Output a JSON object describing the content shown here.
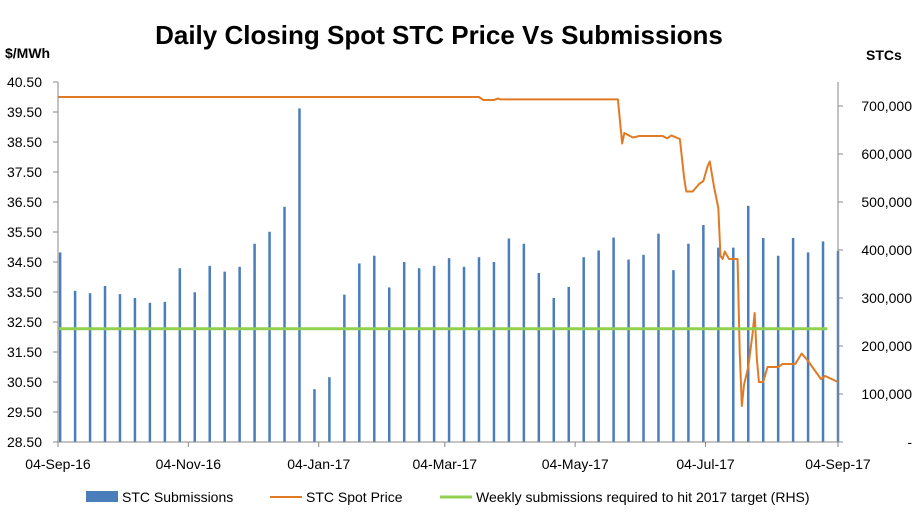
{
  "chart_data": {
    "type": "bar+line",
    "title": "Daily Closing Spot STC Price Vs Submissions",
    "y_left_label": "$/MWh",
    "y_right_label": "STCs",
    "x_range": [
      "2016-09-04",
      "2017-09-04"
    ],
    "x_ticks": [
      {
        "date": "2016-09-04",
        "label": "04-Sep-16"
      },
      {
        "date": "2016-11-04",
        "label": "04-Nov-16"
      },
      {
        "date": "2017-01-04",
        "label": "04-Jan-17"
      },
      {
        "date": "2017-03-04",
        "label": "04-Mar-17"
      },
      {
        "date": "2017-05-04",
        "label": "04-May-17"
      },
      {
        "date": "2017-07-04",
        "label": "04-Jul-17"
      },
      {
        "date": "2017-09-04",
        "label": "04-Sep-17"
      }
    ],
    "y_left": {
      "min": 28.5,
      "max": 40.5,
      "step": 1,
      "ticks": [
        "28.50",
        "29.50",
        "30.50",
        "31.50",
        "32.50",
        "33.50",
        "34.50",
        "35.50",
        "36.50",
        "37.50",
        "38.50",
        "39.50",
        "40.50"
      ]
    },
    "y_right": {
      "min": 0,
      "max": 750000,
      "step": 100000,
      "ticks": [
        "-",
        "100,000",
        "200,000",
        "300,000",
        "400,000",
        "500,000",
        "600,000",
        "700,000"
      ]
    },
    "series": [
      {
        "name": "STC Submissions",
        "kind": "bar",
        "axis": "right",
        "color": "#4A7EBB",
        "points": [
          [
            "2016-09-05",
            395000
          ],
          [
            "2016-09-12",
            315000
          ],
          [
            "2016-09-19",
            310000
          ],
          [
            "2016-09-26",
            325000
          ],
          [
            "2016-10-03",
            308000
          ],
          [
            "2016-10-10",
            300000
          ],
          [
            "2016-10-17",
            290000
          ],
          [
            "2016-10-24",
            292000
          ],
          [
            "2016-10-31",
            362000
          ],
          [
            "2016-11-07",
            312000
          ],
          [
            "2016-11-14",
            367000
          ],
          [
            "2016-11-21",
            355000
          ],
          [
            "2016-11-28",
            365000
          ],
          [
            "2016-12-05",
            413000
          ],
          [
            "2016-12-12",
            438000
          ],
          [
            "2016-12-19",
            490000
          ],
          [
            "2016-12-26",
            695000
          ],
          [
            "2017-01-02",
            110000
          ],
          [
            "2017-01-09",
            135000
          ],
          [
            "2017-01-16",
            307000
          ],
          [
            "2017-01-23",
            372000
          ],
          [
            "2017-01-30",
            388000
          ],
          [
            "2017-02-06",
            322000
          ],
          [
            "2017-02-13",
            375000
          ],
          [
            "2017-02-20",
            362000
          ],
          [
            "2017-02-27",
            367000
          ],
          [
            "2017-03-06",
            383000
          ],
          [
            "2017-03-13",
            365000
          ],
          [
            "2017-03-20",
            385000
          ],
          [
            "2017-03-27",
            375000
          ],
          [
            "2017-04-03",
            424000
          ],
          [
            "2017-04-10",
            413000
          ],
          [
            "2017-04-17",
            352000
          ],
          [
            "2017-04-24",
            300000
          ],
          [
            "2017-05-01",
            323000
          ],
          [
            "2017-05-08",
            385000
          ],
          [
            "2017-05-15",
            399000
          ],
          [
            "2017-05-22",
            426000
          ],
          [
            "2017-05-29",
            380000
          ],
          [
            "2017-06-05",
            390000
          ],
          [
            "2017-06-12",
            434000
          ],
          [
            "2017-06-19",
            358000
          ],
          [
            "2017-06-26",
            413000
          ],
          [
            "2017-07-03",
            452000
          ],
          [
            "2017-07-10",
            405000
          ],
          [
            "2017-07-17",
            405000
          ],
          [
            "2017-07-24",
            492000
          ],
          [
            "2017-07-31",
            425000
          ],
          [
            "2017-08-07",
            388000
          ],
          [
            "2017-08-14",
            425000
          ],
          [
            "2017-08-21",
            395000
          ],
          [
            "2017-08-28",
            418000
          ],
          [
            "2017-09-04",
            398000
          ]
        ]
      },
      {
        "name": "STC Spot Price",
        "kind": "line",
        "axis": "left",
        "color": "#E07B24",
        "points": [
          [
            "2016-09-04",
            40.0
          ],
          [
            "2017-03-20",
            40.0
          ],
          [
            "2017-03-22",
            39.9
          ],
          [
            "2017-03-27",
            39.9
          ],
          [
            "2017-03-29",
            39.95
          ],
          [
            "2017-03-30",
            39.92
          ],
          [
            "2017-05-24",
            39.92
          ],
          [
            "2017-05-26",
            38.45
          ],
          [
            "2017-05-27",
            38.8
          ],
          [
            "2017-05-31",
            38.65
          ],
          [
            "2017-06-03",
            38.7
          ],
          [
            "2017-06-14",
            38.7
          ],
          [
            "2017-06-16",
            38.62
          ],
          [
            "2017-06-18",
            38.72
          ],
          [
            "2017-06-22",
            38.6
          ],
          [
            "2017-06-24",
            37.3
          ],
          [
            "2017-06-25",
            36.85
          ],
          [
            "2017-06-28",
            36.85
          ],
          [
            "2017-07-01",
            37.1
          ],
          [
            "2017-07-03",
            37.2
          ],
          [
            "2017-07-05",
            37.7
          ],
          [
            "2017-07-06",
            37.85
          ],
          [
            "2017-07-08",
            37.0
          ],
          [
            "2017-07-10",
            36.3
          ],
          [
            "2017-07-11",
            34.7
          ],
          [
            "2017-07-12",
            34.6
          ],
          [
            "2017-07-13",
            34.85
          ],
          [
            "2017-07-15",
            34.6
          ],
          [
            "2017-07-19",
            34.6
          ],
          [
            "2017-07-20",
            31.5
          ],
          [
            "2017-07-21",
            29.7
          ],
          [
            "2017-07-22",
            30.4
          ],
          [
            "2017-07-24",
            31.0
          ],
          [
            "2017-07-26",
            32.1
          ],
          [
            "2017-07-27",
            32.8
          ],
          [
            "2017-07-28",
            31.3
          ],
          [
            "2017-07-29",
            30.5
          ],
          [
            "2017-07-31",
            30.5
          ],
          [
            "2017-08-02",
            31.0
          ],
          [
            "2017-08-07",
            31.0
          ],
          [
            "2017-08-09",
            31.1
          ],
          [
            "2017-08-15",
            31.1
          ],
          [
            "2017-08-18",
            31.45
          ],
          [
            "2017-08-21",
            31.2
          ],
          [
            "2017-08-23",
            31.0
          ],
          [
            "2017-08-27",
            30.6
          ],
          [
            "2017-08-29",
            30.7
          ],
          [
            "2017-09-04",
            30.5
          ]
        ]
      },
      {
        "name": "Weekly submissions required to hit 2017 target (RHS)",
        "kind": "line",
        "axis": "right",
        "color": "#92D050",
        "points": [
          [
            "2016-09-04",
            236000
          ],
          [
            "2017-08-30",
            236000
          ]
        ]
      }
    ],
    "legend_position": "bottom",
    "grid": false
  }
}
